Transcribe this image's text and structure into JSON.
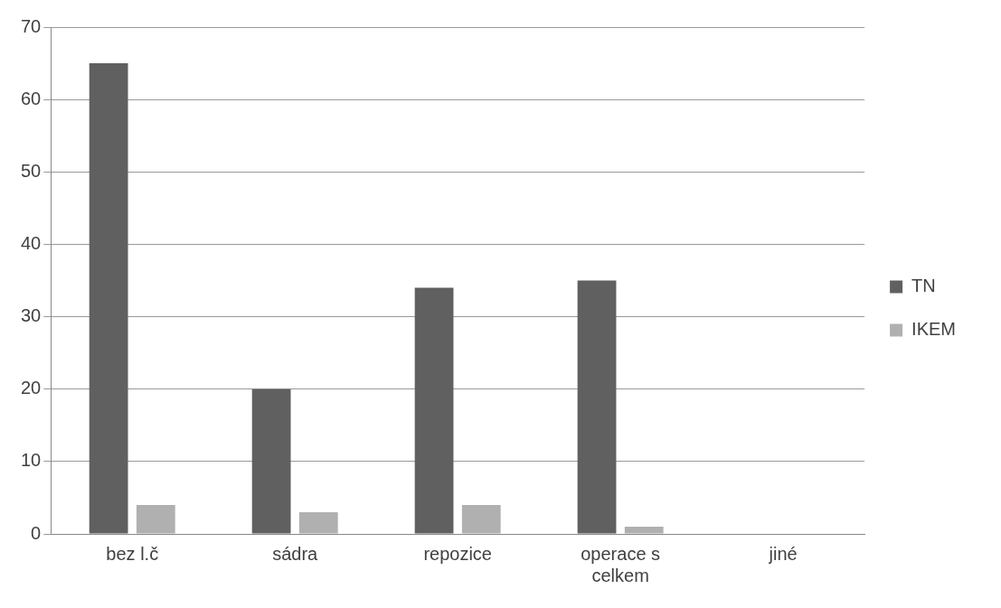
{
  "chart_data": {
    "type": "bar",
    "categories": [
      "bez l.č",
      "sádra",
      "repozice",
      "operace s celkem",
      "jiné"
    ],
    "series": [
      {
        "name": "TN",
        "color": "#606060",
        "values": [
          65,
          20,
          34,
          35,
          0
        ]
      },
      {
        "name": "IKEM",
        "color": "#b0b0b0",
        "values": [
          4,
          3,
          4,
          1,
          0
        ]
      }
    ],
    "ylim": [
      0,
      70
    ],
    "yticks": [
      0,
      10,
      20,
      30,
      40,
      50,
      60,
      70
    ],
    "grid": "y",
    "legend": "right"
  }
}
